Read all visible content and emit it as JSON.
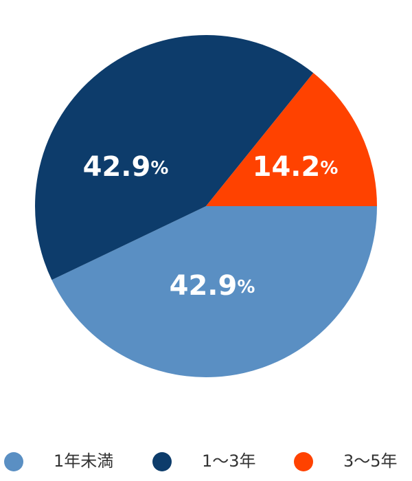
{
  "chart_data": {
    "type": "pie",
    "categories": [
      "1年未満",
      "1〜3年",
      "3〜5年"
    ],
    "values": [
      42.9,
      42.9,
      14.2
    ],
    "value_labels": [
      "42.9%",
      "42.9%",
      "14.2%"
    ],
    "colors": [
      "#5a8fc3",
      "#0d3c6b",
      "#ff4200"
    ],
    "legend": "bottom"
  }
}
